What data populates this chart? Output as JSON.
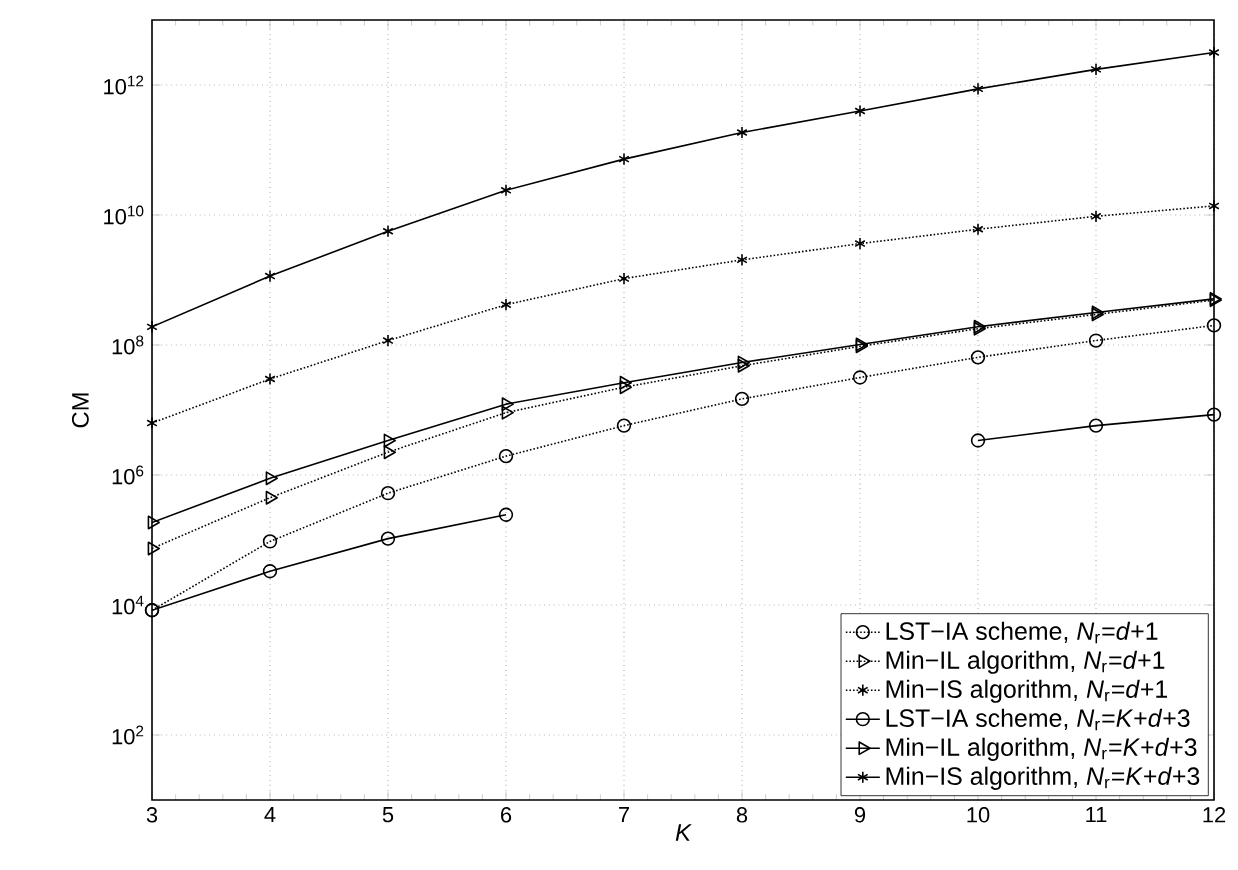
{
  "chart_data": {
    "type": "line",
    "xlabel": "K",
    "ylabel": "CM",
    "x": [
      3,
      4,
      5,
      6,
      7,
      8,
      9,
      10,
      11,
      12
    ],
    "xlim": [
      3,
      12
    ],
    "xticks": [
      3,
      4,
      5,
      6,
      7,
      8,
      9,
      10,
      11,
      12
    ],
    "ylim": [
      10,
      10000000000000
    ],
    "log": "y",
    "yticks": [
      {
        "value": 100,
        "label": "10$^{2}$"
      },
      {
        "value": 10000,
        "label": "10$^{4}$"
      },
      {
        "value": 1000000,
        "label": "10$^{6}$"
      },
      {
        "value": 100000000,
        "label": "10$^{8}$"
      },
      {
        "value": 10000000000,
        "label": "10$^{10}$"
      },
      {
        "value": 1000000000000,
        "label": "10$^{12}$"
      }
    ],
    "grid": true,
    "legend": "bottom right",
    "series": [
      {
        "name": "LST−IA scheme, *N*$_{r}$=*d*+1",
        "color": "#000000",
        "marker": "circle",
        "line_style": "dotted",
        "values": [
          8300,
          95000,
          525000,
          1950000,
          5750000,
          14800000,
          31600000,
          64600000,
          117000000,
          200000000
        ]
      },
      {
        "name": "Min−IL algorithm, *N*$_{r}$=*d*+1",
        "color": "#000000",
        "marker": "triangle",
        "line_style": "dotted",
        "values": [
          74000,
          447000,
          2240000,
          9100000,
          22400000,
          47900000,
          95500000,
          178000000,
          295000000,
          490000000
        ]
      },
      {
        "name": "Min−IS algorithm, *N*$_{r}$=*d*+1",
        "color": "#000000",
        "marker": "cross",
        "line_style": "dotted",
        "values": [
          6300000,
          30000000,
          117000000,
          417000000,
          1050000000,
          2040000000,
          3630000000,
          6030000000,
          9550000000,
          13800000000
        ]
      },
      {
        "name": "LST−IA scheme, *N*$_{r}$=*K*+*d*+3",
        "color": "#000000",
        "marker": "circle",
        "line_style": "solid",
        "values": [
          8300,
          33000,
          105000,
          245000,
          null,
          null,
          null,
          3390000,
          5750000,
          8500000
        ]
      },
      {
        "name": "Min−IL algorithm, *N*$_{r}$=*K*+*d*+3",
        "color": "#000000",
        "marker": "triangle",
        "line_style": "solid",
        "values": [
          186000,
          890000,
          3390000,
          12300000,
          26300000,
          53700000,
          102000000,
          191000000,
          316000000,
          513000000
        ]
      },
      {
        "name": "Min−IS algorithm, *N*$_{r}$=*K*+*d*+3",
        "color": "#000000",
        "marker": "cross",
        "line_style": "solid",
        "values": [
          190000000,
          1150000000,
          5620000000,
          24000000000,
          72400000000,
          186000000000,
          398000000000,
          871000000000,
          1740000000000,
          3160000000000
        ]
      }
    ]
  }
}
